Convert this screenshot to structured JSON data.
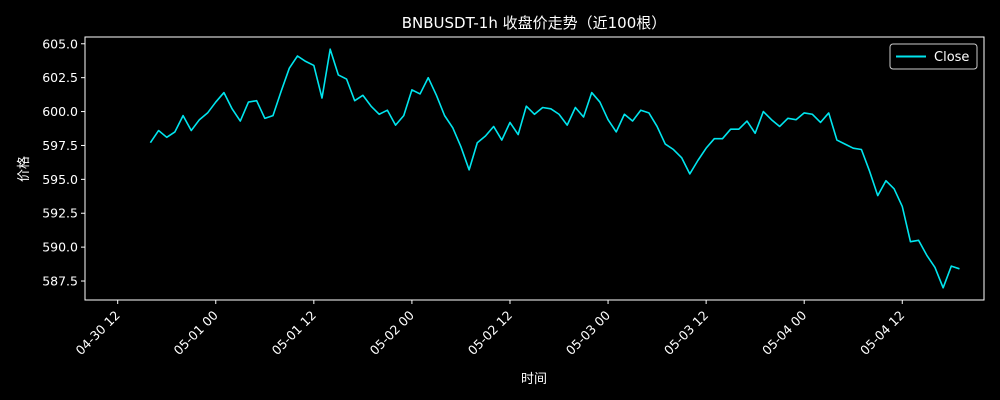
{
  "chart_data": {
    "type": "line",
    "title": "BNBUSDT-1h 收盘价走势（近100根）",
    "xlabel": "时间",
    "ylabel": "价格",
    "ylim": [
      586.1,
      605.5
    ],
    "xlim": [
      "2024-04-30 08:00",
      "2024-05-04 22:00"
    ],
    "grid": false,
    "legend": "top-right",
    "y_ticks": [
      "587.5",
      "590.0",
      "592.5",
      "595.0",
      "597.5",
      "600.0",
      "602.5",
      "605.0"
    ],
    "x_ticks": [
      "04-30 12",
      "05-01 00",
      "05-01 12",
      "05-02 00",
      "05-02 12",
      "05-03 00",
      "05-03 12",
      "05-04 00",
      "05-04 12"
    ],
    "series": [
      {
        "name": "Close",
        "color": "#00e5ee",
        "x_start": "2024-04-30 16:00",
        "x_step": "1h",
        "values": [
          597.7,
          598.6,
          598.1,
          598.5,
          599.7,
          598.6,
          599.4,
          599.9,
          600.7,
          601.4,
          600.2,
          599.3,
          600.7,
          600.8,
          599.5,
          599.7,
          601.5,
          603.2,
          604.1,
          603.7,
          603.4,
          601.0,
          604.6,
          602.7,
          602.4,
          600.8,
          601.2,
          600.4,
          599.8,
          600.1,
          599.0,
          599.7,
          601.6,
          601.3,
          602.5,
          601.2,
          599.7,
          598.8,
          597.4,
          595.7,
          597.7,
          598.2,
          598.9,
          597.9,
          599.2,
          598.3,
          600.4,
          599.8,
          600.3,
          600.2,
          599.8,
          599.0,
          600.3,
          599.6,
          601.4,
          600.7,
          599.4,
          598.5,
          599.8,
          599.3,
          600.1,
          599.9,
          598.9,
          597.6,
          597.2,
          596.6,
          595.4,
          596.4,
          597.3,
          598.0,
          598.0,
          598.7,
          598.7,
          599.3,
          598.4,
          600.0,
          599.4,
          598.9,
          599.5,
          599.4,
          599.9,
          599.8,
          599.2,
          599.9,
          597.9,
          597.6,
          597.3,
          597.2,
          595.6,
          593.8,
          594.9,
          594.3,
          593.0,
          590.4,
          590.5,
          589.4,
          588.5,
          587.0,
          588.6,
          588.4
        ]
      }
    ]
  }
}
